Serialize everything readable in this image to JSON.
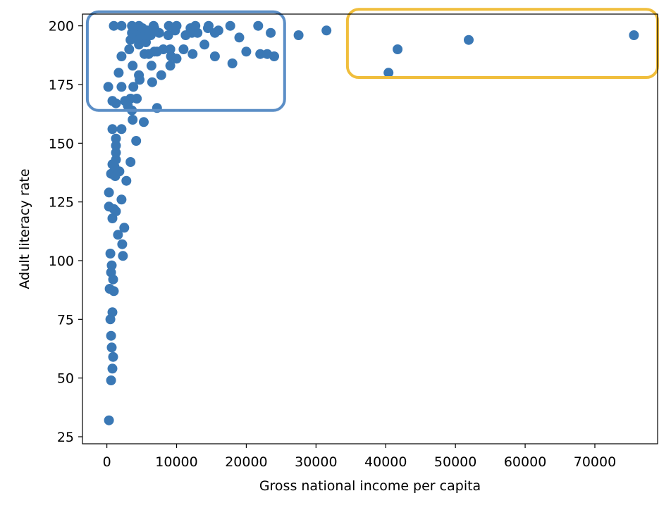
{
  "chart_data": {
    "type": "scatter",
    "xlabel": "Gross national income per capita",
    "ylabel": "Adult literacy rate",
    "xlim": [
      -3500,
      79000
    ],
    "ylim": [
      22,
      205
    ],
    "xticks": [
      0,
      10000,
      20000,
      30000,
      40000,
      50000,
      60000,
      70000
    ],
    "yticks": [
      25,
      50,
      75,
      100,
      125,
      150,
      175,
      200
    ],
    "grid": false,
    "point_color": "#3a78b5",
    "highlight_boxes": [
      {
        "name": "left-cluster-box",
        "color": "#5b8ec6",
        "x_range": [
          -2800,
          25500
        ],
        "y_range": [
          164,
          206
        ]
      },
      {
        "name": "high-income-box",
        "color": "#f0be3c",
        "x_range": [
          34500,
          79000
        ],
        "y_range": [
          178,
          207
        ]
      }
    ],
    "points": [
      [
        300,
        32
      ],
      [
        600,
        49
      ],
      [
        800,
        54
      ],
      [
        900,
        59
      ],
      [
        700,
        63
      ],
      [
        600,
        68
      ],
      [
        500,
        75
      ],
      [
        800,
        78
      ],
      [
        400,
        88
      ],
      [
        1000,
        87
      ],
      [
        900,
        92
      ],
      [
        600,
        95
      ],
      [
        700,
        98
      ],
      [
        500,
        103
      ],
      [
        2300,
        102
      ],
      [
        2200,
        107
      ],
      [
        1600,
        111
      ],
      [
        2500,
        114
      ],
      [
        800,
        118
      ],
      [
        1300,
        121
      ],
      [
        300,
        123
      ],
      [
        1000,
        122
      ],
      [
        2100,
        126
      ],
      [
        300,
        129
      ],
      [
        2800,
        134
      ],
      [
        600,
        137
      ],
      [
        1200,
        136
      ],
      [
        1800,
        138
      ],
      [
        800,
        141
      ],
      [
        1100,
        140
      ],
      [
        3400,
        142
      ],
      [
        1300,
        143
      ],
      [
        1300,
        146
      ],
      [
        1300,
        149
      ],
      [
        1300,
        152
      ],
      [
        4200,
        151
      ],
      [
        800,
        156
      ],
      [
        2100,
        156
      ],
      [
        3700,
        160
      ],
      [
        5300,
        159
      ],
      [
        3600,
        164
      ],
      [
        7200,
        165
      ],
      [
        3000,
        166
      ],
      [
        800,
        168
      ],
      [
        1300,
        167
      ],
      [
        2600,
        168
      ],
      [
        3400,
        169
      ],
      [
        4300,
        169
      ],
      [
        200,
        174
      ],
      [
        2100,
        174
      ],
      [
        3800,
        174
      ],
      [
        6500,
        176
      ],
      [
        4700,
        177
      ],
      [
        7800,
        179
      ],
      [
        1700,
        180
      ],
      [
        4600,
        179
      ],
      [
        3700,
        183
      ],
      [
        6400,
        183
      ],
      [
        9100,
        183
      ],
      [
        18000,
        184
      ],
      [
        10000,
        186
      ],
      [
        9200,
        187
      ],
      [
        15500,
        187
      ],
      [
        2100,
        187
      ],
      [
        5400,
        188
      ],
      [
        6000,
        188
      ],
      [
        6800,
        189
      ],
      [
        7200,
        189
      ],
      [
        8100,
        190
      ],
      [
        9100,
        190
      ],
      [
        11000,
        190
      ],
      [
        12300,
        188
      ],
      [
        20000,
        189
      ],
      [
        22000,
        188
      ],
      [
        23000,
        188
      ],
      [
        24000,
        187
      ],
      [
        14000,
        192
      ],
      [
        3200,
        190
      ],
      [
        4600,
        192
      ],
      [
        5600,
        193
      ],
      [
        3400,
        194
      ],
      [
        4400,
        195
      ],
      [
        5400,
        196
      ],
      [
        6300,
        196
      ],
      [
        7500,
        197
      ],
      [
        8800,
        196
      ],
      [
        11300,
        196
      ],
      [
        12200,
        197
      ],
      [
        15500,
        197
      ],
      [
        19000,
        195
      ],
      [
        27500,
        196
      ],
      [
        23500,
        197
      ],
      [
        31500,
        198
      ],
      [
        3600,
        197
      ],
      [
        4200,
        198
      ],
      [
        5800,
        198
      ],
      [
        6800,
        199
      ],
      [
        9800,
        198
      ],
      [
        13000,
        197
      ],
      [
        14500,
        199
      ],
      [
        16000,
        198
      ],
      [
        1000,
        200
      ],
      [
        2100,
        200
      ],
      [
        3600,
        200
      ],
      [
        4600,
        200
      ],
      [
        5100,
        199
      ],
      [
        6700,
        200
      ],
      [
        8900,
        200
      ],
      [
        10000,
        200
      ],
      [
        12000,
        199
      ],
      [
        12700,
        200
      ],
      [
        14600,
        200
      ],
      [
        17700,
        200
      ],
      [
        21700,
        200
      ],
      [
        40400,
        180
      ],
      [
        41700,
        190
      ],
      [
        51900,
        194
      ],
      [
        75600,
        196
      ]
    ]
  }
}
